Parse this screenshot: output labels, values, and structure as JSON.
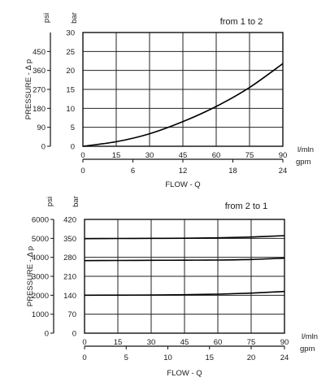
{
  "chart_data": [
    {
      "type": "line",
      "annotation": "from 1 to 2",
      "ylabel": "PRESSURE - Δ p",
      "xlabel": "FLOW - Q",
      "x_unit_primary": "l/mln",
      "x_unit_secondary": "gpm",
      "y_unit_primary": "bar",
      "y_unit_secondary": "psi",
      "xlim": [
        0,
        90
      ],
      "ylim": [
        0,
        30
      ],
      "grid": true,
      "x_ticks_primary": [
        "0",
        "15",
        "30",
        "45",
        "60",
        "75",
        "90"
      ],
      "x_ticks_secondary": [
        "0",
        "6",
        "12",
        "18",
        "24"
      ],
      "y_ticks_primary": [
        "0",
        "5",
        "10",
        "15",
        "20",
        "25",
        "30"
      ],
      "y_ticks_secondary": [
        "0",
        "90",
        "180",
        "270",
        "360",
        "450"
      ],
      "series": [
        {
          "x": [
            0,
            15,
            30,
            45,
            60,
            75,
            90
          ],
          "y": [
            0,
            1.2,
            3.3,
            6.5,
            10.5,
            15.5,
            21.8
          ]
        }
      ]
    },
    {
      "type": "line",
      "annotation": "from 2 to 1",
      "ylabel": "PRESSURE - Δ p",
      "xlabel": "FLOW - Q",
      "x_unit_primary": "l/mln",
      "x_unit_secondary": "gpm",
      "y_unit_primary": "bar",
      "y_unit_secondary": "psi",
      "xlim": [
        0,
        90
      ],
      "ylim": [
        0,
        420
      ],
      "grid": true,
      "x_ticks_primary": [
        "0",
        "15",
        "30",
        "45",
        "60",
        "75",
        "90"
      ],
      "x_ticks_secondary": [
        "0",
        "5",
        "10",
        "15",
        "20",
        "24"
      ],
      "y_ticks_primary": [
        "0",
        "70",
        "140",
        "210",
        "280",
        "350",
        "420"
      ],
      "y_ticks_secondary": [
        "0",
        "1000",
        "2000",
        "3000",
        "4000",
        "5000",
        "6000"
      ],
      "series": [
        {
          "x": [
            0,
            15,
            30,
            45,
            60,
            75,
            90
          ],
          "y": [
            349,
            349.5,
            350,
            350.5,
            352,
            355,
            360
          ]
        },
        {
          "x": [
            0,
            15,
            30,
            45,
            60,
            75,
            90
          ],
          "y": [
            268,
            268.5,
            269,
            269.5,
            270,
            272,
            277
          ]
        },
        {
          "x": [
            0,
            15,
            30,
            45,
            60,
            75,
            90
          ],
          "y": [
            140,
            140.5,
            141,
            142,
            144,
            148,
            154
          ]
        }
      ]
    }
  ]
}
